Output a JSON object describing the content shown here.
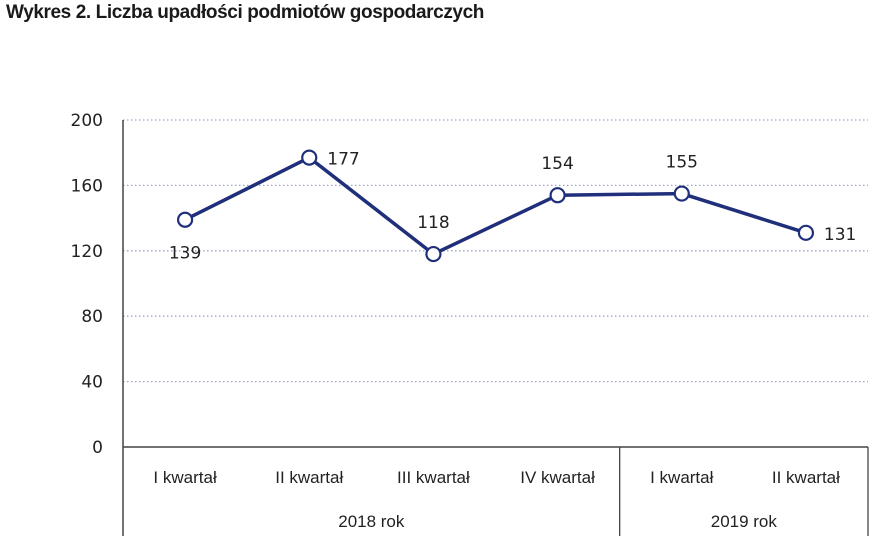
{
  "chart_data": {
    "type": "line",
    "title": "Wykres 2. Liczba upadłości podmiotów gospodarczych",
    "categories": [
      "I kwartał",
      "II kwartał",
      "III kwartał",
      "IV kwartał",
      "I kwartał",
      "II kwartał"
    ],
    "groups": [
      {
        "label": "2018 rok",
        "start": 0,
        "end": 3
      },
      {
        "label": "2019 rok",
        "start": 4,
        "end": 5
      }
    ],
    "series": [
      {
        "values": [
          139,
          177,
          118,
          154,
          155,
          131
        ]
      }
    ],
    "data_labels": [
      "139",
      "177",
      "118",
      "154",
      "155",
      "131"
    ],
    "yticks": [
      "0",
      "40",
      "80",
      "120",
      "160",
      "200"
    ],
    "ylim": [
      0,
      200
    ],
    "grid": true,
    "colors": {
      "line": "#1f2f7a",
      "grid": "#9aa6d0",
      "axis": "#444444"
    }
  }
}
